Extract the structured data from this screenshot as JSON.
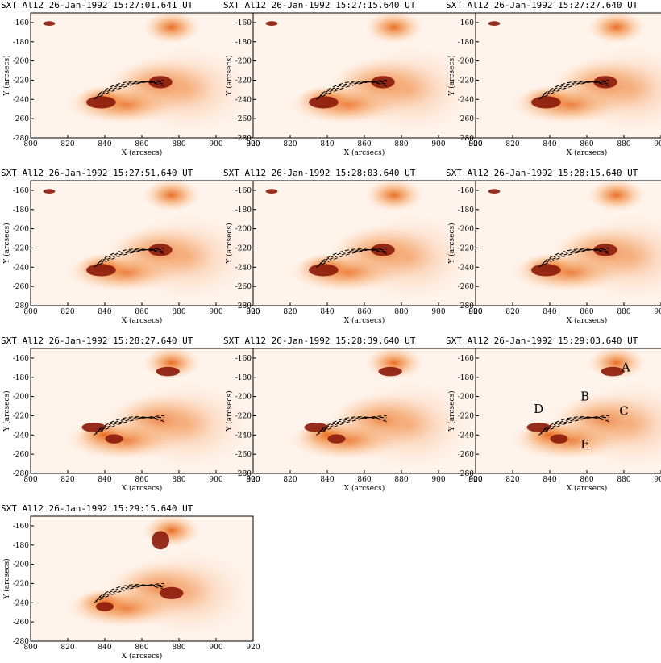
{
  "figure": {
    "panels": [
      {
        "title": "SXT Al12   26-Jan-1992 15:27:01.641 UT"
      },
      {
        "title": "SXT Al12   26-Jan-1992 15:27:15.640 UT"
      },
      {
        "title": "SXT Al12   26-Jan-1992 15:27:27.640 UT"
      },
      {
        "title": "SXT Al12   26-Jan-1992 15:27:51.640 UT"
      },
      {
        "title": "SXT Al12   26-Jan-1992 15:28:03.640 UT"
      },
      {
        "title": "SXT Al12   26-Jan-1992 15:28:15.640 UT"
      },
      {
        "title": "SXT Al12   26-Jan-1992 15:28:27.640 UT"
      },
      {
        "title": "SXT Al12   26-Jan-1992 15:28:39.640 UT"
      },
      {
        "title": "SXT Al12   26-Jan-1992 15:29:03.640 UT",
        "labels": [
          {
            "text": "A",
            "x": 881,
            "y": -174
          },
          {
            "text": "B",
            "x": 859,
            "y": -204
          },
          {
            "text": "C",
            "x": 880,
            "y": -219
          },
          {
            "text": "D",
            "x": 834,
            "y": -217
          },
          {
            "text": "E",
            "x": 859,
            "y": -254
          }
        ]
      },
      {
        "title": "SXT Al12   26-Jan-1992 15:29:15.640 UT"
      }
    ],
    "x_axis": {
      "label": "X (arcsecs)",
      "range": [
        800,
        920
      ],
      "ticks": [
        "800",
        "820",
        "840",
        "860",
        "880",
        "900",
        "920"
      ]
    },
    "y_axis": {
      "label": "Y (arcsecs)",
      "range": [
        -280,
        -150
      ],
      "ticks": [
        "-160",
        "-180",
        "-200",
        "-220",
        "-240",
        "-260",
        "-280"
      ]
    },
    "colors": {
      "background": "#fff4ec",
      "emission": "#f08a40",
      "contour_fill": "#8b1a0a",
      "contour_line": "#000000"
    }
  }
}
